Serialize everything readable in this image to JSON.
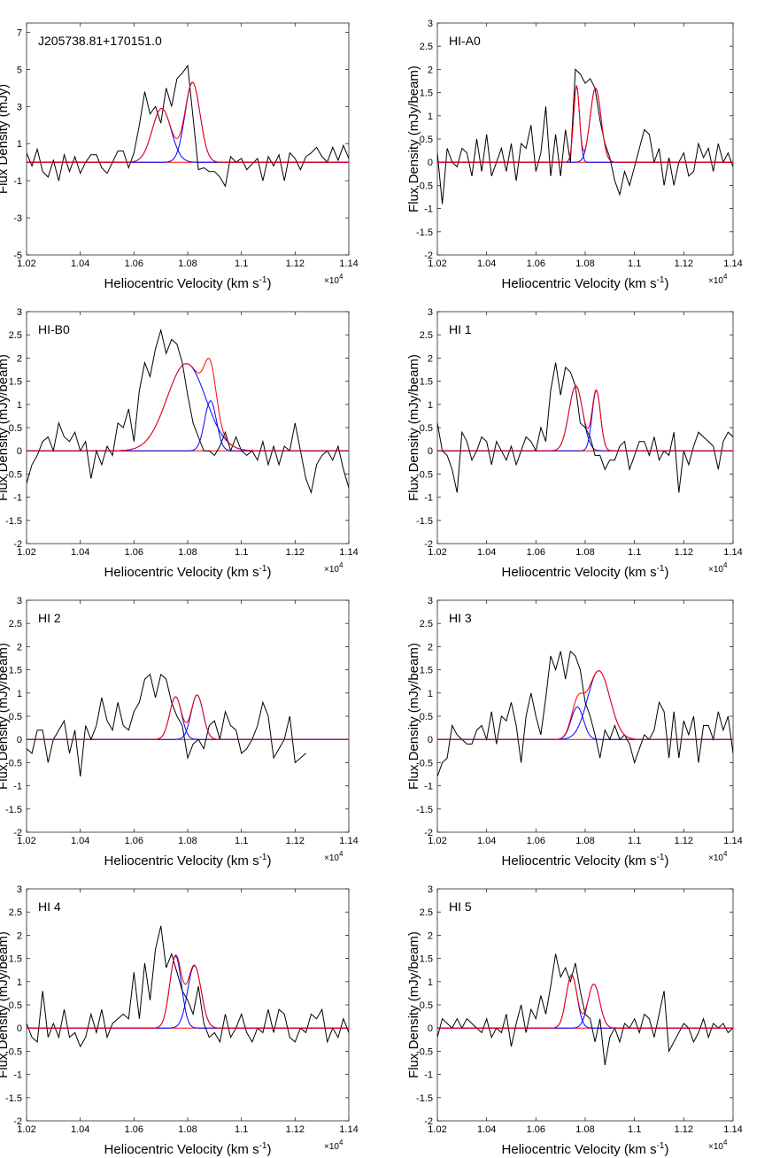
{
  "figure": {
    "xlabel": "Heliocentric Velocity (km s",
    "xlabel_sup": "-1",
    "xlabel_close": ")",
    "x_multiplier": "×10",
    "x_multiplier_exp": "4",
    "colors": {
      "observed": "#000000",
      "component": "#0000ff",
      "total_fit": "#ff0000",
      "zero_line": "#ff0000"
    }
  },
  "chart_data": [
    {
      "type": "line",
      "title": "J205738.81+170151.0",
      "ylabel": "Flux Density (mJy)",
      "xlim": [
        1.02,
        1.14
      ],
      "ylim": [
        -5,
        7.5
      ],
      "xticks": [
        "1.02",
        "1.04",
        "1.06",
        "1.08",
        "1.1",
        "1.12",
        "1.14"
      ],
      "xtick_values": [
        1.02,
        1.04,
        1.06,
        1.08,
        1.1,
        1.12,
        1.14
      ],
      "yticks": [
        "-5",
        "-3",
        "-1",
        "1",
        "3",
        "5",
        "7"
      ],
      "ytick_values": [
        -5,
        -3,
        -1,
        1,
        3,
        5,
        7
      ],
      "components": [
        {
          "amp": 2.9,
          "center": 1.0703,
          "sigma": 0.0035
        },
        {
          "amp": 4.3,
          "center": 1.0818,
          "sigma": 0.0028
        }
      ],
      "observed": {
        "x_start": 1.02,
        "x_step": 0.002,
        "y": [
          0.5,
          -0.2,
          0.7,
          -0.5,
          -0.8,
          0.1,
          -1.0,
          0.4,
          -0.5,
          0.3,
          -0.6,
          0.0,
          0.4,
          0.4,
          -0.3,
          -0.6,
          0.0,
          0.6,
          0.6,
          -0.3,
          0.5,
          2.0,
          3.8,
          2.6,
          3.0,
          2.1,
          4.0,
          3.0,
          4.5,
          4.8,
          5.2,
          2.4,
          -0.4,
          -0.3,
          -0.5,
          -0.5,
          -0.8,
          -1.3,
          0.3,
          0.0,
          0.2,
          -0.4,
          -0.1,
          0.2,
          -1.0,
          0.3,
          -0.2,
          0.4,
          -1.0,
          0.5,
          0.2,
          -0.4,
          0.3,
          0.5,
          0.8,
          0.3,
          0.0,
          0.8,
          0.1,
          0.9,
          0.2
        ]
      }
    },
    {
      "type": "line",
      "title": "HI-A0",
      "ylabel": "Flux Density (mJy/beam)",
      "xlim": [
        1.02,
        1.14
      ],
      "ylim": [
        -2,
        3
      ],
      "xticks": [
        "1.02",
        "1.04",
        "1.06",
        "1.08",
        "1.1",
        "1.12",
        "1.14"
      ],
      "xtick_values": [
        1.02,
        1.04,
        1.06,
        1.08,
        1.1,
        1.12,
        1.14
      ],
      "yticks": [
        "-2",
        "-1.5",
        "-1",
        "-0.5",
        "0",
        "0.5",
        "1",
        "1.5",
        "2",
        "2.5",
        "3"
      ],
      "ytick_values": [
        -2,
        -1.5,
        -1,
        -0.5,
        0,
        0.5,
        1,
        1.5,
        2,
        2.5,
        3
      ],
      "components": [
        {
          "amp": 1.65,
          "center": 1.0765,
          "sigma": 0.0012
        },
        {
          "amp": 1.6,
          "center": 1.0842,
          "sigma": 0.0022
        }
      ],
      "observed": {
        "x_start": 1.02,
        "x_step": 0.002,
        "y": [
          0.2,
          -0.9,
          0.3,
          0.0,
          -0.1,
          0.3,
          0.2,
          -0.3,
          0.5,
          -0.2,
          0.6,
          -0.3,
          0.0,
          0.3,
          -0.2,
          0.4,
          -0.4,
          0.4,
          0.3,
          0.8,
          -0.2,
          0.2,
          1.2,
          -0.3,
          0.6,
          -0.3,
          0.7,
          0.0,
          2.0,
          1.9,
          1.7,
          1.8,
          1.6,
          0.9,
          0.4,
          0.1,
          -0.4,
          -0.7,
          -0.2,
          -0.5,
          -0.1,
          0.3,
          0.7,
          0.6,
          0.0,
          0.3,
          -0.5,
          0.1,
          -0.5,
          0.0,
          0.2,
          -0.3,
          -0.2,
          0.4,
          0.1,
          0.3,
          -0.2,
          0.4,
          0.0,
          0.2,
          -0.1
        ]
      }
    },
    {
      "type": "line",
      "title": "HI-B0",
      "ylabel": "Flux Density (mJy/beam)",
      "xlim": [
        1.02,
        1.14
      ],
      "ylim": [
        -2,
        3
      ],
      "xticks": [
        "1.02",
        "1.04",
        "1.06",
        "1.08",
        "1.1",
        "1.12",
        "1.14"
      ],
      "xtick_values": [
        1.02,
        1.04,
        1.06,
        1.08,
        1.1,
        1.12,
        1.14
      ],
      "yticks": [
        "-2",
        "-1.5",
        "-1",
        "-0.5",
        "0",
        "0.5",
        "1",
        "1.5",
        "2",
        "2.5",
        "3"
      ],
      "ytick_values": [
        -2,
        -1.5,
        -1,
        -0.5,
        0,
        0.5,
        1,
        1.5,
        2,
        2.5,
        3
      ],
      "components": [
        {
          "amp": 1.88,
          "center": 1.0795,
          "sigma": 0.0072
        },
        {
          "amp": 1.08,
          "center": 1.0885,
          "sigma": 0.0022
        }
      ],
      "observed": {
        "x_start": 1.02,
        "x_step": 0.002,
        "y": [
          -0.7,
          -0.3,
          -0.1,
          0.2,
          0.3,
          0.0,
          0.6,
          0.3,
          0.2,
          0.4,
          0.0,
          0.2,
          -0.6,
          0.0,
          -0.3,
          0.1,
          -0.1,
          0.6,
          0.5,
          0.9,
          0.2,
          1.3,
          1.9,
          1.6,
          2.2,
          2.6,
          2.1,
          2.4,
          2.3,
          1.9,
          1.2,
          0.6,
          0.3,
          0.0,
          0.0,
          -0.1,
          0.1,
          0.4,
          0.0,
          0.3,
          0.0,
          -0.1,
          0.0,
          -0.2,
          0.2,
          -0.3,
          0.1,
          -0.3,
          0.1,
          0.0,
          0.6,
          0.0,
          -0.6,
          -0.9,
          -0.3,
          -0.1,
          0.0,
          -0.2,
          0.1,
          -0.4,
          -0.8
        ]
      }
    },
    {
      "type": "line",
      "title": "HI 1",
      "ylabel": "Flux Density (mJy/beam)",
      "xlim": [
        1.02,
        1.14
      ],
      "ylim": [
        -2,
        3
      ],
      "xticks": [
        "1.02",
        "1.04",
        "1.06",
        "1.08",
        "1.1",
        "1.12",
        "1.14"
      ],
      "xtick_values": [
        1.02,
        1.04,
        1.06,
        1.08,
        1.1,
        1.12,
        1.14
      ],
      "yticks": [
        "-2",
        "-1.5",
        "-1",
        "-0.5",
        "0",
        "0.5",
        "1",
        "1.5",
        "2",
        "2.5",
        "3"
      ],
      "ytick_values": [
        -2,
        -1.5,
        -1,
        -0.5,
        0,
        0.5,
        1,
        1.5,
        2,
        2.5,
        3
      ],
      "components": [
        {
          "amp": 1.4,
          "center": 1.0762,
          "sigma": 0.0028
        },
        {
          "amp": 1.3,
          "center": 1.0845,
          "sigma": 0.0017
        }
      ],
      "observed": {
        "x_start": 1.02,
        "x_step": 0.002,
        "y": [
          0.6,
          0.0,
          -0.1,
          -0.4,
          -0.9,
          0.4,
          0.2,
          -0.2,
          0.0,
          0.3,
          0.2,
          -0.3,
          0.2,
          0.0,
          -0.2,
          0.1,
          -0.3,
          0.0,
          0.3,
          0.2,
          0.0,
          0.5,
          0.2,
          1.3,
          1.9,
          1.2,
          1.8,
          1.7,
          1.4,
          0.6,
          0.5,
          0.3,
          -0.1,
          -0.1,
          -0.4,
          -0.2,
          -0.2,
          0.1,
          0.2,
          -0.4,
          -0.1,
          0.2,
          0.2,
          -0.1,
          0.3,
          -0.2,
          0.0,
          -0.1,
          0.4,
          -0.9,
          0.0,
          -0.3,
          0.1,
          0.4,
          0.3,
          0.2,
          0.1,
          -0.4,
          0.2,
          0.4,
          0.3
        ]
      }
    },
    {
      "type": "line",
      "title": "HI 2",
      "ylabel": "Flux Density (mJy/beam)",
      "xlim": [
        1.02,
        1.14
      ],
      "ylim": [
        -2,
        3
      ],
      "xticks": [
        "1.02",
        "1.04",
        "1.06",
        "1.08",
        "1.1",
        "1.12",
        "1.14"
      ],
      "xtick_values": [
        1.02,
        1.04,
        1.06,
        1.08,
        1.1,
        1.12,
        1.14
      ],
      "yticks": [
        "-2",
        "-1.5",
        "-1",
        "-0.5",
        "0",
        "0.5",
        "1",
        "1.5",
        "2",
        "2.5",
        "3"
      ],
      "ytick_values": [
        -2,
        -1.5,
        -1,
        -0.5,
        0,
        0.5,
        1,
        1.5,
        2,
        2.5,
        3
      ],
      "components": [
        {
          "amp": 0.92,
          "center": 1.0755,
          "sigma": 0.0022
        },
        {
          "amp": 0.96,
          "center": 1.0835,
          "sigma": 0.0022
        }
      ],
      "observed": {
        "x_start": 1.02,
        "x_step": 0.002,
        "y": [
          -0.2,
          -0.3,
          0.2,
          0.2,
          -0.5,
          0.0,
          0.2,
          0.4,
          -0.3,
          0.2,
          -0.8,
          0.3,
          0.0,
          0.3,
          0.9,
          0.4,
          0.2,
          0.8,
          0.3,
          0.2,
          0.6,
          0.8,
          1.3,
          1.4,
          0.9,
          1.4,
          1.3,
          0.8,
          0.5,
          0.3,
          -0.4,
          -0.1,
          0.0,
          -0.2,
          0.3,
          0.4,
          0.0,
          0.6,
          0.3,
          0.2,
          -0.3,
          -0.2,
          0.0,
          0.3,
          0.8,
          0.5,
          -0.4,
          -0.2,
          0.0,
          0.5,
          -0.5,
          -0.4,
          -0.3
        ]
      }
    },
    {
      "type": "line",
      "title": "HI 3",
      "ylabel": "Flux Density (mJy/beam)",
      "xlim": [
        1.02,
        1.14
      ],
      "ylim": [
        -2,
        3
      ],
      "xticks": [
        "1.02",
        "1.04",
        "1.06",
        "1.08",
        "1.1",
        "1.12",
        "1.14"
      ],
      "xtick_values": [
        1.02,
        1.04,
        1.06,
        1.08,
        1.1,
        1.12,
        1.14
      ],
      "yticks": [
        "-2",
        "-1.5",
        "-1",
        "-0.5",
        "0",
        "0.5",
        "1",
        "1.5",
        "2",
        "2.5",
        "3"
      ],
      "ytick_values": [
        -2,
        -1.5,
        -1,
        -0.5,
        0,
        0.5,
        1,
        1.5,
        2,
        2.5,
        3
      ],
      "components": [
        {
          "amp": 0.7,
          "center": 1.0768,
          "sigma": 0.0025
        },
        {
          "amp": 1.48,
          "center": 1.0855,
          "sigma": 0.0045
        }
      ],
      "observed": {
        "x_start": 1.02,
        "x_step": 0.002,
        "y": [
          -0.8,
          -0.5,
          -0.4,
          0.3,
          0.1,
          0.0,
          -0.1,
          -0.1,
          0.2,
          0.3,
          0.0,
          0.6,
          -0.1,
          0.5,
          0.4,
          0.8,
          0.3,
          -0.5,
          0.5,
          1.0,
          0.5,
          0.1,
          0.9,
          1.8,
          1.5,
          1.9,
          1.3,
          1.9,
          1.8,
          1.5,
          0.8,
          0.5,
          0.1,
          -0.4,
          0.2,
          0.0,
          0.3,
          0.0,
          0.1,
          -0.1,
          -0.5,
          -0.2,
          0.1,
          0.0,
          0.2,
          0.8,
          0.6,
          -0.4,
          0.6,
          -0.4,
          0.4,
          0.1,
          0.5,
          -0.5,
          0.3,
          0.3,
          0.0,
          0.6,
          0.2,
          0.5,
          -0.3
        ]
      }
    },
    {
      "type": "line",
      "title": "HI 4",
      "ylabel": "Flux Density (mJy/beam)",
      "xlim": [
        1.02,
        1.14
      ],
      "ylim": [
        -2,
        3
      ],
      "xticks": [
        "1.02",
        "1.04",
        "1.06",
        "1.08",
        "1.1",
        "1.12",
        "1.14"
      ],
      "xtick_values": [
        1.02,
        1.04,
        1.06,
        1.08,
        1.1,
        1.12,
        1.14
      ],
      "yticks": [
        "-2",
        "-1.5",
        "-1",
        "-0.5",
        "0",
        "0.5",
        "1",
        "1.5",
        "2",
        "2.5",
        "3"
      ],
      "ytick_values": [
        -2,
        -1.5,
        -1,
        -0.5,
        0,
        0.5,
        1,
        1.5,
        2,
        2.5,
        3
      ],
      "components": [
        {
          "amp": 1.55,
          "center": 1.0755,
          "sigma": 0.0022
        },
        {
          "amp": 1.35,
          "center": 1.0825,
          "sigma": 0.0025
        }
      ],
      "observed": {
        "x_start": 1.02,
        "x_step": 0.002,
        "y": [
          0.1,
          -0.2,
          -0.3,
          0.8,
          -0.2,
          0.1,
          -0.2,
          0.4,
          -0.2,
          -0.1,
          -0.4,
          -0.2,
          0.3,
          -0.1,
          0.4,
          -0.2,
          0.1,
          0.2,
          0.3,
          0.2,
          1.2,
          0.2,
          1.4,
          0.6,
          1.7,
          2.2,
          1.3,
          1.6,
          1.2,
          0.8,
          0.6,
          0.3,
          0.9,
          0.1,
          -0.2,
          -0.1,
          -0.3,
          0.3,
          -0.2,
          0.0,
          0.3,
          -0.1,
          -0.3,
          0.0,
          -0.1,
          0.4,
          -0.1,
          0.4,
          0.3,
          -0.2,
          -0.3,
          0.0,
          -0.1,
          0.3,
          0.2,
          0.4,
          -0.3,
          0.0,
          -0.2,
          0.2,
          -0.1
        ]
      }
    },
    {
      "type": "line",
      "title": "HI 5",
      "ylabel": "Flux Density (mJy/beam)",
      "xlim": [
        1.02,
        1.14
      ],
      "ylim": [
        -2,
        3
      ],
      "xticks": [
        "1.02",
        "1.04",
        "1.06",
        "1.08",
        "1.1",
        "1.12",
        "1.14"
      ],
      "xtick_values": [
        1.02,
        1.04,
        1.06,
        1.08,
        1.1,
        1.12,
        1.14
      ],
      "yticks": [
        "-2",
        "-1.5",
        "-1",
        "-0.5",
        "0",
        "0.5",
        "1",
        "1.5",
        "2",
        "2.5",
        "3"
      ],
      "ytick_values": [
        -2,
        -1.5,
        -1,
        -0.5,
        0,
        0.5,
        1,
        1.5,
        2,
        2.5,
        3
      ],
      "components": [
        {
          "amp": 1.15,
          "center": 1.0745,
          "sigma": 0.0022
        },
        {
          "amp": 0.95,
          "center": 1.0835,
          "sigma": 0.0024
        }
      ],
      "observed": {
        "x_start": 1.02,
        "x_step": 0.002,
        "y": [
          -0.2,
          0.2,
          0.1,
          0.0,
          0.2,
          0.0,
          0.2,
          0.1,
          0.0,
          -0.1,
          0.2,
          -0.2,
          0.0,
          -0.1,
          0.3,
          -0.4,
          0.1,
          0.5,
          -0.1,
          0.4,
          0.2,
          0.7,
          0.3,
          0.9,
          1.6,
          1.1,
          1.3,
          1.0,
          1.4,
          0.8,
          0.3,
          0.2,
          -0.3,
          0.2,
          -0.8,
          -0.2,
          0.0,
          -0.3,
          0.1,
          0.0,
          0.2,
          -0.1,
          0.3,
          0.2,
          -0.2,
          0.3,
          0.8,
          -0.5,
          -0.3,
          -0.1,
          0.1,
          0.0,
          -0.3,
          -0.1,
          0.2,
          -0.2,
          0.1,
          0.0,
          0.1,
          -0.1,
          0.0
        ]
      }
    }
  ]
}
